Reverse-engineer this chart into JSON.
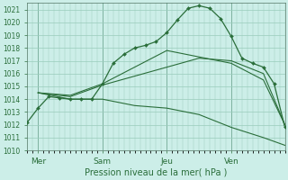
{
  "title": "Pression niveau de la mer( hPa )",
  "bg_color": "#cceee8",
  "grid_color": "#99ccbb",
  "line_color": "#2a6e3a",
  "ylim": [
    1010,
    1021.5
  ],
  "yticks": [
    1010,
    1011,
    1012,
    1013,
    1014,
    1015,
    1016,
    1017,
    1018,
    1019,
    1020,
    1021
  ],
  "xlim": [
    0,
    48
  ],
  "xtick_labels": [
    "Mer",
    "Sam",
    "Jeu",
    "Ven"
  ],
  "xtick_positions": [
    2,
    14,
    26,
    38
  ],
  "vlines": [
    2,
    14,
    26,
    38
  ],
  "lines": [
    {
      "x": [
        0,
        2,
        4,
        6,
        8,
        10,
        12,
        14,
        16,
        18,
        20,
        22,
        24,
        26,
        28,
        30,
        32,
        34,
        36,
        38,
        40,
        42,
        44,
        46,
        48
      ],
      "y": [
        1012.2,
        1013.3,
        1014.2,
        1014.1,
        1014.0,
        1014.0,
        1014.0,
        1015.2,
        1016.8,
        1017.5,
        1018.0,
        1018.2,
        1018.5,
        1019.2,
        1020.2,
        1021.1,
        1021.3,
        1021.1,
        1020.3,
        1018.9,
        1017.2,
        1016.8,
        1016.5,
        1015.2,
        1011.8
      ],
      "markers": true
    },
    {
      "x": [
        2,
        8,
        14,
        20,
        26,
        32,
        38,
        44,
        48
      ],
      "y": [
        1014.5,
        1014.3,
        1015.2,
        1016.5,
        1017.8,
        1017.3,
        1016.8,
        1015.5,
        1012.0
      ],
      "markers": false
    },
    {
      "x": [
        2,
        8,
        14,
        20,
        26,
        32,
        38,
        44,
        48
      ],
      "y": [
        1014.5,
        1014.2,
        1015.1,
        1015.8,
        1016.5,
        1017.2,
        1017.0,
        1016.0,
        1012.0
      ],
      "markers": false
    },
    {
      "x": [
        2,
        8,
        14,
        20,
        26,
        32,
        38,
        44,
        48
      ],
      "y": [
        1014.5,
        1014.0,
        1014.0,
        1013.5,
        1013.3,
        1012.8,
        1011.8,
        1011.0,
        1010.4
      ],
      "markers": false
    }
  ]
}
